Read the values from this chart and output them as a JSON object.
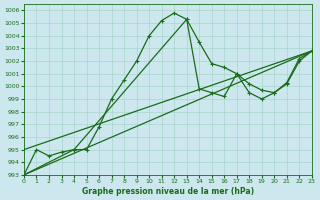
{
  "title": "Graphe pression niveau de la mer (hPa)",
  "background_color": "#cce8ee",
  "grid_color": "#aad4cc",
  "line_color": "#1a6b1a",
  "xlim": [
    0,
    23
  ],
  "ylim": [
    993,
    1006.5
  ],
  "xticks": [
    0,
    1,
    2,
    3,
    4,
    5,
    6,
    7,
    8,
    9,
    10,
    11,
    12,
    13,
    14,
    15,
    16,
    17,
    18,
    19,
    20,
    21,
    22,
    23
  ],
  "yticks": [
    993,
    994,
    995,
    996,
    997,
    998,
    999,
    1000,
    1001,
    1002,
    1003,
    1004,
    1005,
    1006
  ],
  "curve1_x": [
    0,
    1,
    2,
    3,
    4,
    5,
    6,
    7,
    8,
    9,
    10,
    11,
    12,
    13,
    14,
    15,
    16,
    17,
    18,
    19,
    20,
    21,
    22,
    23
  ],
  "curve1_y": [
    993.0,
    995.0,
    994.5,
    994.8,
    995.0,
    995.0,
    996.8,
    999.0,
    1000.5,
    1002.0,
    1004.0,
    1005.2,
    1005.8,
    1005.3,
    1003.5,
    1001.8,
    1001.5,
    1001.0,
    1000.2,
    999.7,
    999.5,
    1000.2,
    1002.0,
    1002.8
  ],
  "curve2_x": [
    0,
    4,
    13,
    14,
    15,
    16,
    17,
    18,
    19,
    20,
    21,
    22,
    23
  ],
  "curve2_y": [
    993.0,
    995.0,
    1005.3,
    999.8,
    999.5,
    999.2,
    1001.0,
    999.5,
    999.0,
    999.5,
    1000.3,
    1002.2,
    1002.8
  ],
  "line3_x": [
    0,
    23
  ],
  "line3_y": [
    995.0,
    1002.8
  ],
  "line4_x": [
    0,
    23
  ],
  "line4_y": [
    993.0,
    1002.8
  ]
}
